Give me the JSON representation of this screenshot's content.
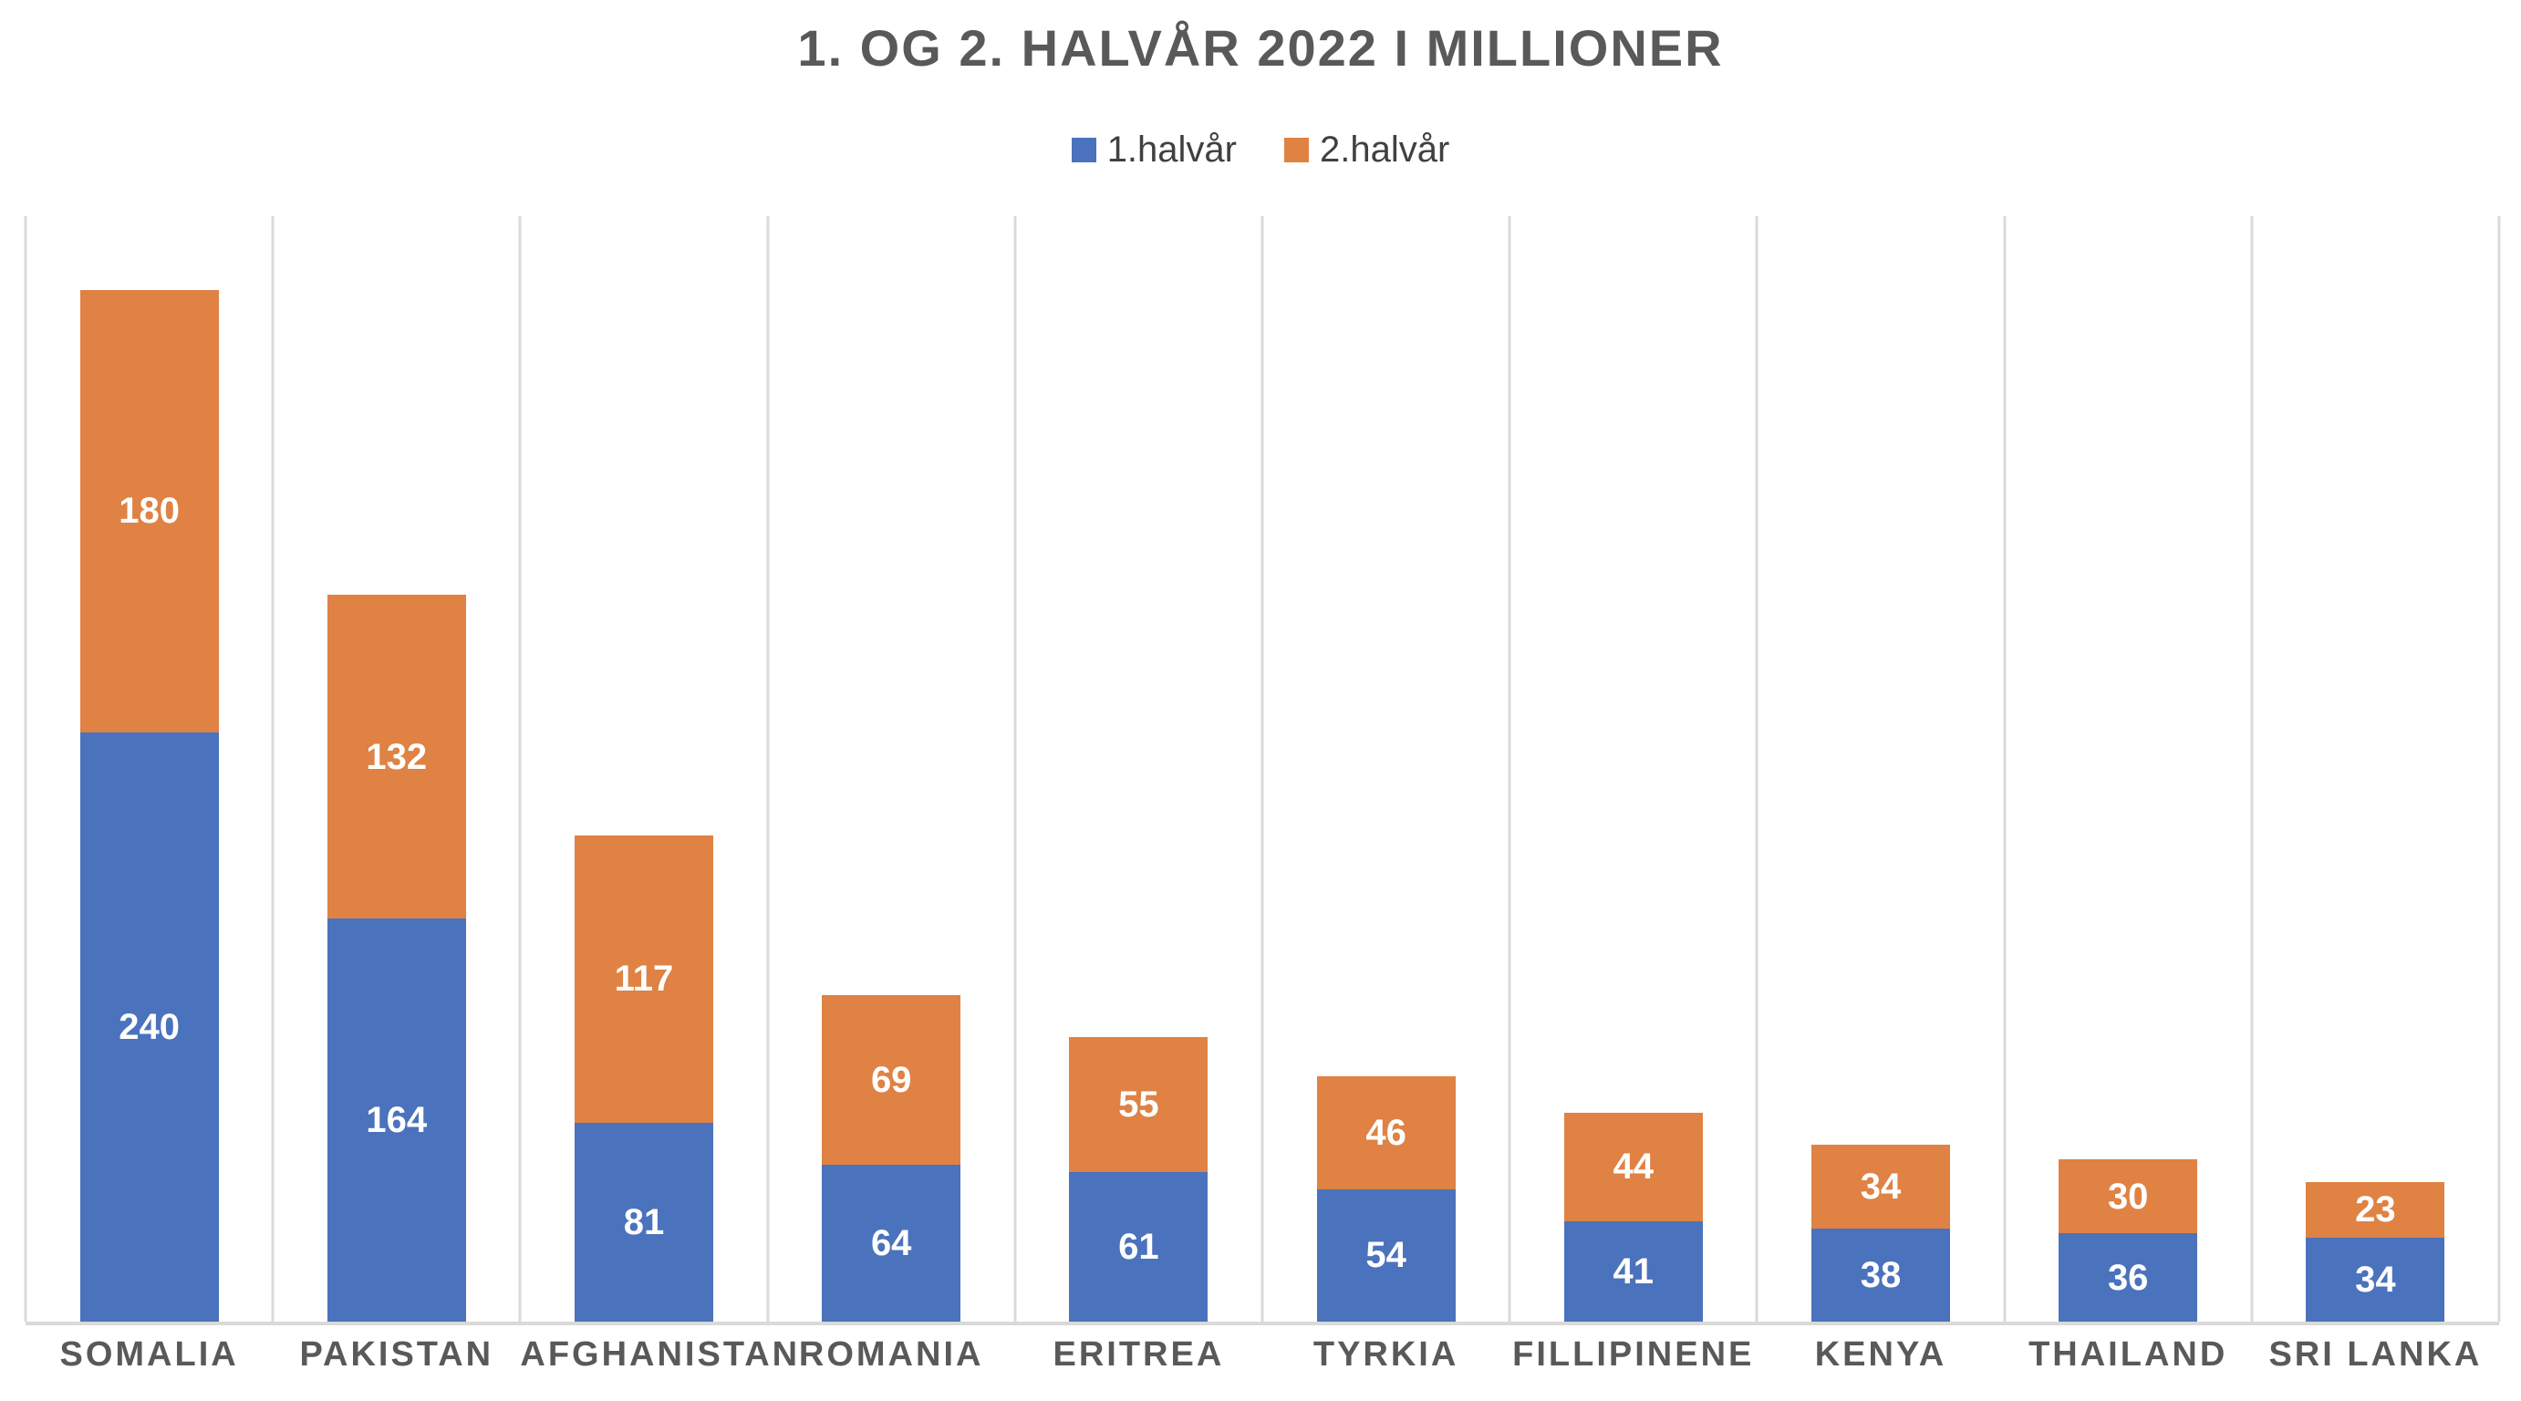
{
  "chart_data": {
    "type": "bar",
    "stacked": true,
    "title": "1. OG 2. HALVÅR 2022 I MILLIONER",
    "categories": [
      "SOMALIA",
      "PAKISTAN",
      "AFGHANISTAN",
      "ROMANIA",
      "ERITREA",
      "TYRKIA",
      "FILLIPINENE",
      "KENYA",
      "THAILAND",
      "SRI LANKA"
    ],
    "series": [
      {
        "name": "1.halvår",
        "color": "#4b72bc",
        "values": [
          240,
          164,
          81,
          64,
          61,
          54,
          41,
          38,
          36,
          34
        ]
      },
      {
        "name": "2.halvår",
        "color": "#df8244",
        "values": [
          180,
          132,
          117,
          69,
          55,
          46,
          44,
          34,
          30,
          23
        ]
      }
    ],
    "xlabel": "",
    "ylabel": "",
    "ylim": [
      0,
      450
    ],
    "y_axis_labels_visible": false,
    "grid": "vertical category separators",
    "gridline_color": "#d9d9d9",
    "legend_position": "top-center",
    "data_labels": true,
    "data_label_color": "#ffffff",
    "title_color": "#595959",
    "category_label_color": "#595959",
    "background_color": "#ffffff"
  }
}
